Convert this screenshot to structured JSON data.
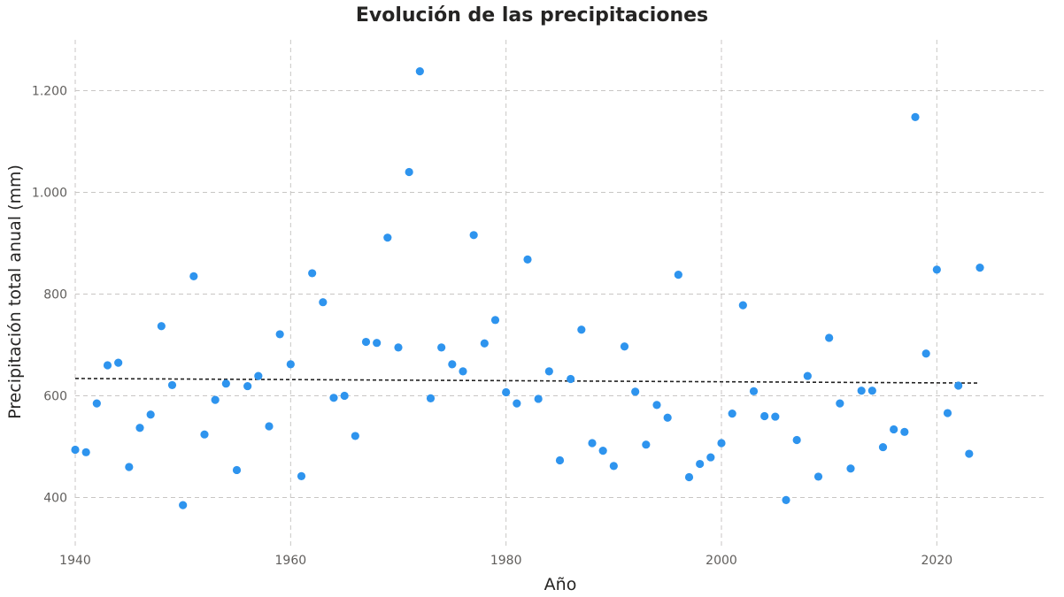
{
  "chart_data": {
    "type": "scatter",
    "title": "Evolución de las precipitaciones",
    "xlabel": "Año",
    "ylabel": "Precipitación total anual (mm)",
    "xlim": [
      1940,
      2030
    ],
    "ylim": [
      300,
      1300
    ],
    "x_ticks": [
      1940,
      1960,
      1980,
      2000,
      2020
    ],
    "y_ticks": [
      400,
      600,
      800,
      1000,
      1200
    ],
    "y_tick_labels": [
      "400",
      "600",
      "800",
      "1.000",
      "1.200"
    ],
    "grid": true,
    "point_color": "#2e94ee",
    "trend_color": "#222222",
    "trend_line": {
      "x": [
        1940,
        2024
      ],
      "y": [
        634,
        625
      ]
    },
    "series": [
      {
        "x": [
          1940,
          1941,
          1942,
          1943,
          1944,
          1945,
          1946,
          1947,
          1948,
          1949,
          1950,
          1951,
          1952,
          1953,
          1954,
          1955,
          1956,
          1957,
          1958,
          1959,
          1960,
          1961,
          1962,
          1963,
          1964,
          1965,
          1966,
          1967,
          1968,
          1969,
          1970,
          1971,
          1972,
          1973,
          1974,
          1975,
          1976,
          1977,
          1978,
          1979,
          1980,
          1981,
          1982,
          1983,
          1984,
          1985,
          1986,
          1987,
          1988,
          1989,
          1990,
          1991,
          1992,
          1993,
          1994,
          1995,
          1996,
          1997,
          1998,
          1999,
          2000,
          2001,
          2002,
          2003,
          2004,
          2005,
          2006,
          2007,
          2008,
          2009,
          2010,
          2011,
          2012,
          2013,
          2014,
          2015,
          2016,
          2017,
          2018,
          2019,
          2020,
          2021,
          2022,
          2023,
          2024
        ],
        "values": [
          494,
          489,
          585,
          660,
          665,
          460,
          537,
          563,
          737,
          621,
          385,
          835,
          524,
          592,
          624,
          454,
          619,
          639,
          540,
          721,
          662,
          442,
          841,
          784,
          596,
          600,
          521,
          706,
          704,
          911,
          695,
          1040,
          1238,
          595,
          695,
          662,
          648,
          916,
          703,
          749,
          607,
          585,
          868,
          594,
          648,
          473,
          633,
          730,
          507,
          492,
          462,
          697,
          608,
          504,
          582,
          557,
          838,
          440,
          466,
          479,
          507,
          565,
          778,
          609,
          560,
          559,
          395,
          513,
          639,
          441,
          714,
          585,
          457,
          610,
          610,
          499,
          534,
          529,
          1148,
          683,
          848,
          566,
          620,
          486,
          852
        ]
      }
    ]
  }
}
